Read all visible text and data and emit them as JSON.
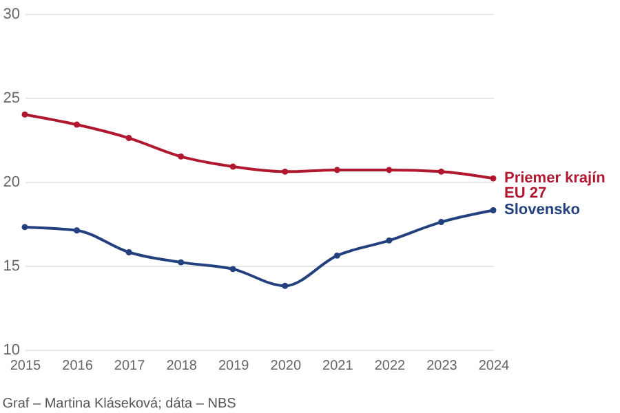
{
  "chart_data": {
    "type": "line",
    "x": [
      2015,
      2016,
      2017,
      2018,
      2019,
      2020,
      2021,
      2022,
      2023,
      2024
    ],
    "series": [
      {
        "name": "Priemer krajín EU 27",
        "color": "#b0182f",
        "values": [
          24.0,
          23.4,
          22.6,
          21.5,
          20.9,
          20.6,
          20.7,
          20.7,
          20.6,
          20.2
        ]
      },
      {
        "name": "Slovensko",
        "color": "#23407f",
        "values": [
          17.3,
          17.1,
          15.8,
          15.2,
          14.8,
          13.8,
          15.6,
          16.5,
          17.6,
          18.3
        ]
      }
    ],
    "xlim": [
      2015,
      2024
    ],
    "xticks": [
      2015,
      2016,
      2017,
      2018,
      2019,
      2020,
      2021,
      2022,
      2023,
      2024
    ],
    "ylim": [
      10,
      30
    ],
    "yticks": [
      10,
      15,
      20,
      25,
      30
    ],
    "grid": "y",
    "marker": "circle",
    "line_style": "solid",
    "annotations": [
      "Graf – Martina Kláseková; dáta – NBS"
    ]
  }
}
